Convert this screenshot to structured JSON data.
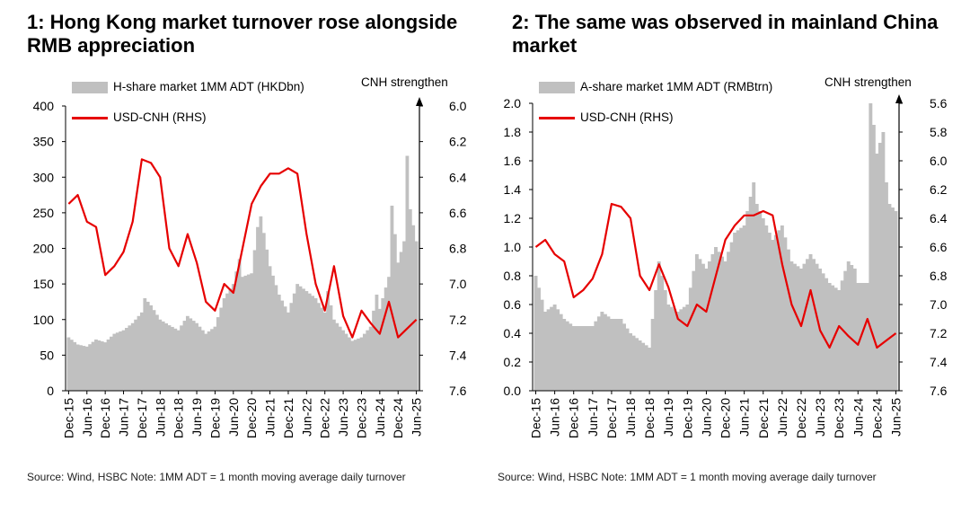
{
  "chart_data": [
    {
      "type": "bar",
      "title": "1: Hong Kong market turnover rose alongside RMB appreciation",
      "source": "Source: Wind, HSBC Note: 1MM ADT = 1 month moving average daily turnover",
      "legend": {
        "placement": "top-left"
      },
      "right_axis_title": "CNH strengthen",
      "colors": {
        "bars": "#c0c0c0",
        "line": "#e60000"
      },
      "x_ticks": [
        "Dec-15",
        "Jun-16",
        "Dec-16",
        "Jun-17",
        "Dec-17",
        "Jun-18",
        "Dec-18",
        "Jun-19",
        "Dec-19",
        "Jun-20",
        "Dec-20",
        "Jun-21",
        "Dec-21",
        "Jun-22",
        "Dec-22",
        "Jun-23",
        "Dec-23",
        "Jun-24",
        "Dec-24",
        "Jun-25"
      ],
      "y_left": {
        "ticks": [
          "0",
          "50",
          "100",
          "150",
          "200",
          "250",
          "300",
          "350",
          "400"
        ],
        "lim": [
          0,
          400
        ]
      },
      "y_right": {
        "ticks": [
          "6.0",
          "6.2",
          "6.4",
          "6.6",
          "6.8",
          "7.0",
          "7.2",
          "7.4",
          "7.6"
        ],
        "lim": [
          6.0,
          7.6
        ],
        "inverted": true
      },
      "series": [
        {
          "name": "H-share market 1MM ADT (HKDbn)",
          "axis": "left",
          "kind": "bar",
          "x": [
            "Dec-15",
            "Mar-16",
            "Jun-16",
            "Sep-16",
            "Dec-16",
            "Mar-17",
            "Jun-17",
            "Sep-17",
            "Dec-17",
            "Jan-18",
            "Mar-18",
            "Jun-18",
            "Sep-18",
            "Dec-18",
            "Mar-19",
            "Jun-19",
            "Sep-19",
            "Dec-19",
            "Mar-20",
            "Jun-20",
            "Aug-20",
            "Sep-20",
            "Dec-20",
            "Feb-21",
            "Mar-21",
            "Jun-21",
            "Sep-21",
            "Dec-21",
            "Mar-22",
            "Jun-22",
            "Sep-22",
            "Dec-22",
            "Jan-23",
            "Mar-23",
            "Jun-23",
            "Sep-23",
            "Dec-23",
            "Mar-24",
            "May-24",
            "Jun-24",
            "Sep-24",
            "Oct-24",
            "Dec-24",
            "Feb-25",
            "Mar-25",
            "Apr-25",
            "Jun-25"
          ],
          "values": [
            75,
            65,
            62,
            72,
            68,
            80,
            85,
            95,
            110,
            130,
            120,
            100,
            92,
            85,
            105,
            95,
            80,
            90,
            130,
            150,
            185,
            160,
            165,
            230,
            245,
            175,
            135,
            110,
            150,
            140,
            130,
            110,
            140,
            100,
            85,
            70,
            75,
            90,
            135,
            115,
            160,
            260,
            180,
            210,
            330,
            255,
            210
          ]
        },
        {
          "name": "USD-CNH (RHS)",
          "axis": "right",
          "kind": "line",
          "x": [
            "Dec-15",
            "Mar-16",
            "Jun-16",
            "Sep-16",
            "Dec-16",
            "Mar-17",
            "Jun-17",
            "Sep-17",
            "Dec-17",
            "Mar-18",
            "Jun-18",
            "Sep-18",
            "Dec-18",
            "Mar-19",
            "Jun-19",
            "Sep-19",
            "Dec-19",
            "Mar-20",
            "Jun-20",
            "Sep-20",
            "Dec-20",
            "Mar-21",
            "Jun-21",
            "Sep-21",
            "Dec-21",
            "Mar-22",
            "Jun-22",
            "Sep-22",
            "Dec-22",
            "Mar-23",
            "Jun-23",
            "Sep-23",
            "Dec-23",
            "Mar-24",
            "Jun-24",
            "Sep-24",
            "Dec-24",
            "Mar-25",
            "Jun-25"
          ],
          "values": [
            6.55,
            6.5,
            6.65,
            6.68,
            6.95,
            6.9,
            6.82,
            6.65,
            6.3,
            6.32,
            6.4,
            6.8,
            6.9,
            6.72,
            6.88,
            7.1,
            7.15,
            7.0,
            7.05,
            6.8,
            6.55,
            6.45,
            6.38,
            6.38,
            6.35,
            6.38,
            6.72,
            7.0,
            7.15,
            6.9,
            7.18,
            7.3,
            7.15,
            7.22,
            7.28,
            7.1,
            7.3,
            7.25,
            7.2
          ]
        }
      ]
    },
    {
      "type": "bar",
      "title": "2: The same was observed in mainland China market",
      "source": "Source: Wind, HSBC Note: 1MM ADT = 1 month moving average daily turnover",
      "legend": {
        "placement": "top-left"
      },
      "right_axis_title": "CNH strengthen",
      "colors": {
        "bars": "#c0c0c0",
        "line": "#e60000"
      },
      "x_ticks": [
        "Dec-15",
        "Jun-16",
        "Dec-16",
        "Jun-17",
        "Dec-17",
        "Jun-18",
        "Dec-18",
        "Jun-19",
        "Dec-19",
        "Jun-20",
        "Dec-20",
        "Jun-21",
        "Dec-21",
        "Jun-22",
        "Dec-22",
        "Jun-23",
        "Dec-23",
        "Jun-24",
        "Dec-24",
        "Jun-25"
      ],
      "y_left": {
        "ticks": [
          "0.0",
          "0.2",
          "0.4",
          "0.6",
          "0.8",
          "1.0",
          "1.2",
          "1.4",
          "1.6",
          "1.8",
          "2.0"
        ],
        "lim": [
          0,
          2.0
        ]
      },
      "y_right": {
        "ticks": [
          "5.6",
          "5.8",
          "6.0",
          "6.2",
          "6.4",
          "6.6",
          "6.8",
          "7.0",
          "7.2",
          "7.4",
          "7.6"
        ],
        "lim": [
          5.6,
          7.6
        ],
        "inverted": true
      },
      "series": [
        {
          "name": "A-share market 1MM ADT (RMBtrn)",
          "axis": "left",
          "kind": "bar",
          "x": [
            "Dec-15",
            "Mar-16",
            "Jun-16",
            "Sep-16",
            "Dec-16",
            "Mar-17",
            "Jun-17",
            "Sep-17",
            "Dec-17",
            "Mar-18",
            "Jun-18",
            "Sep-18",
            "Dec-18",
            "Mar-19",
            "Jun-19",
            "Sep-19",
            "Dec-19",
            "Mar-20",
            "Jun-20",
            "Sep-20",
            "Dec-20",
            "Mar-21",
            "Jun-21",
            "Sep-21",
            "Oct-21",
            "Dec-21",
            "Mar-22",
            "Jun-22",
            "Sep-22",
            "Dec-22",
            "Mar-23",
            "Jun-23",
            "Sep-23",
            "Dec-23",
            "Mar-24",
            "May-24",
            "Jun-24",
            "Sep-24",
            "Oct-24",
            "Nov-24",
            "Dec-24",
            "Feb-25",
            "Mar-25",
            "Apr-25",
            "Jun-25"
          ],
          "values": [
            0.8,
            0.55,
            0.6,
            0.5,
            0.45,
            0.45,
            0.45,
            0.55,
            0.5,
            0.5,
            0.4,
            0.35,
            0.3,
            0.9,
            0.6,
            0.55,
            0.6,
            0.95,
            0.85,
            1.0,
            0.9,
            1.1,
            1.15,
            1.45,
            1.3,
            1.2,
            1.05,
            1.15,
            0.9,
            0.85,
            0.95,
            0.85,
            0.75,
            0.7,
            0.9,
            0.85,
            0.75,
            0.75,
            2.0,
            1.85,
            1.65,
            1.8,
            1.45,
            1.3,
            1.25
          ]
        },
        {
          "name": "USD-CNH (RHS)",
          "axis": "right",
          "kind": "line",
          "x": [
            "Dec-15",
            "Mar-16",
            "Jun-16",
            "Sep-16",
            "Dec-16",
            "Mar-17",
            "Jun-17",
            "Sep-17",
            "Dec-17",
            "Mar-18",
            "Jun-18",
            "Sep-18",
            "Dec-18",
            "Mar-19",
            "Jun-19",
            "Sep-19",
            "Dec-19",
            "Mar-20",
            "Jun-20",
            "Sep-20",
            "Dec-20",
            "Mar-21",
            "Jun-21",
            "Sep-21",
            "Dec-21",
            "Mar-22",
            "Jun-22",
            "Sep-22",
            "Dec-22",
            "Mar-23",
            "Jun-23",
            "Sep-23",
            "Dec-23",
            "Mar-24",
            "Jun-24",
            "Sep-24",
            "Dec-24",
            "Mar-25",
            "Jun-25"
          ],
          "values": [
            6.6,
            6.55,
            6.65,
            6.7,
            6.95,
            6.9,
            6.82,
            6.65,
            6.3,
            6.32,
            6.4,
            6.8,
            6.9,
            6.72,
            6.88,
            7.1,
            7.15,
            7.0,
            7.05,
            6.8,
            6.55,
            6.45,
            6.38,
            6.38,
            6.35,
            6.38,
            6.72,
            7.0,
            7.15,
            6.9,
            7.18,
            7.3,
            7.15,
            7.22,
            7.28,
            7.1,
            7.3,
            7.25,
            7.2
          ]
        }
      ]
    }
  ]
}
